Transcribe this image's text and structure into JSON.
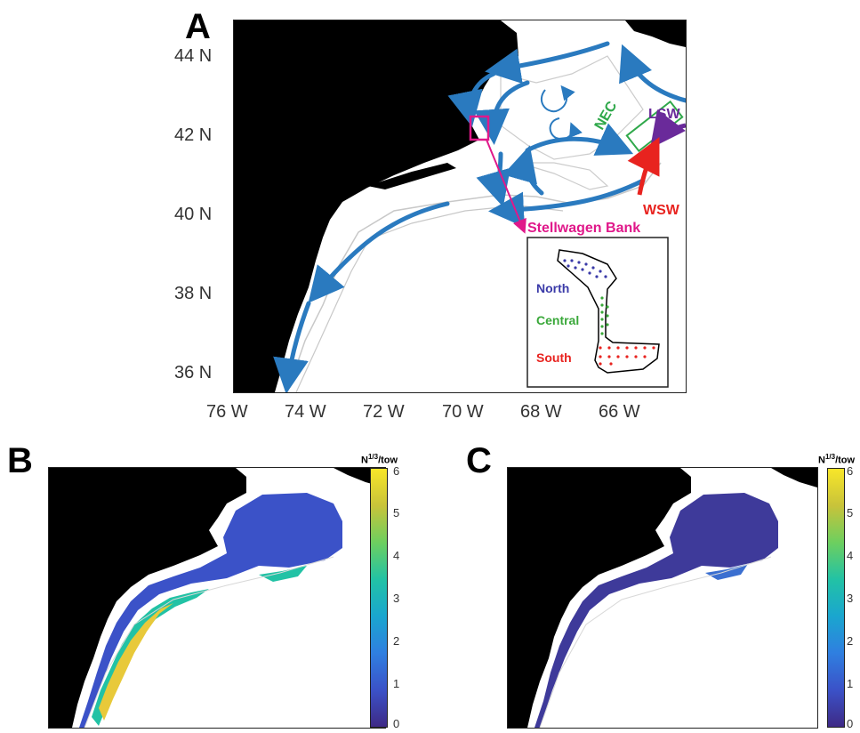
{
  "panel_a": {
    "letter": "A",
    "lat_ticks": [
      "44 N",
      "42 N",
      "40 N",
      "38 N",
      "36 N"
    ],
    "lon_ticks": [
      "76 W",
      "74 W",
      "72 W",
      "70 W",
      "68 W",
      "66 W"
    ],
    "labels": {
      "nec": "NEC",
      "lsw": "LSW",
      "wsw": "WSW",
      "stellwagen": "Stellwagen Bank"
    },
    "inset": {
      "north": "North",
      "central": "Central",
      "south": "South"
    },
    "colors": {
      "current_arrow": "#2a7abf",
      "nec": "#2fa84a",
      "lsw": "#6a2a9a",
      "wsw": "#e8231f",
      "stellwagen": "#e0188a",
      "north_dots": "#3a3aa8",
      "central_dots": "#3aa83a",
      "south_dots": "#e8231f"
    }
  },
  "panel_b": {
    "letter": "B",
    "colorbar_title": "N1/3/tow",
    "colorbar_ticks": [
      "6",
      "5",
      "4",
      "3",
      "2",
      "1",
      "0"
    ]
  },
  "panel_c": {
    "letter": "C",
    "colorbar_title": "N1/3/tow",
    "colorbar_ticks": [
      "6",
      "5",
      "4",
      "3",
      "2",
      "1",
      "0"
    ]
  }
}
